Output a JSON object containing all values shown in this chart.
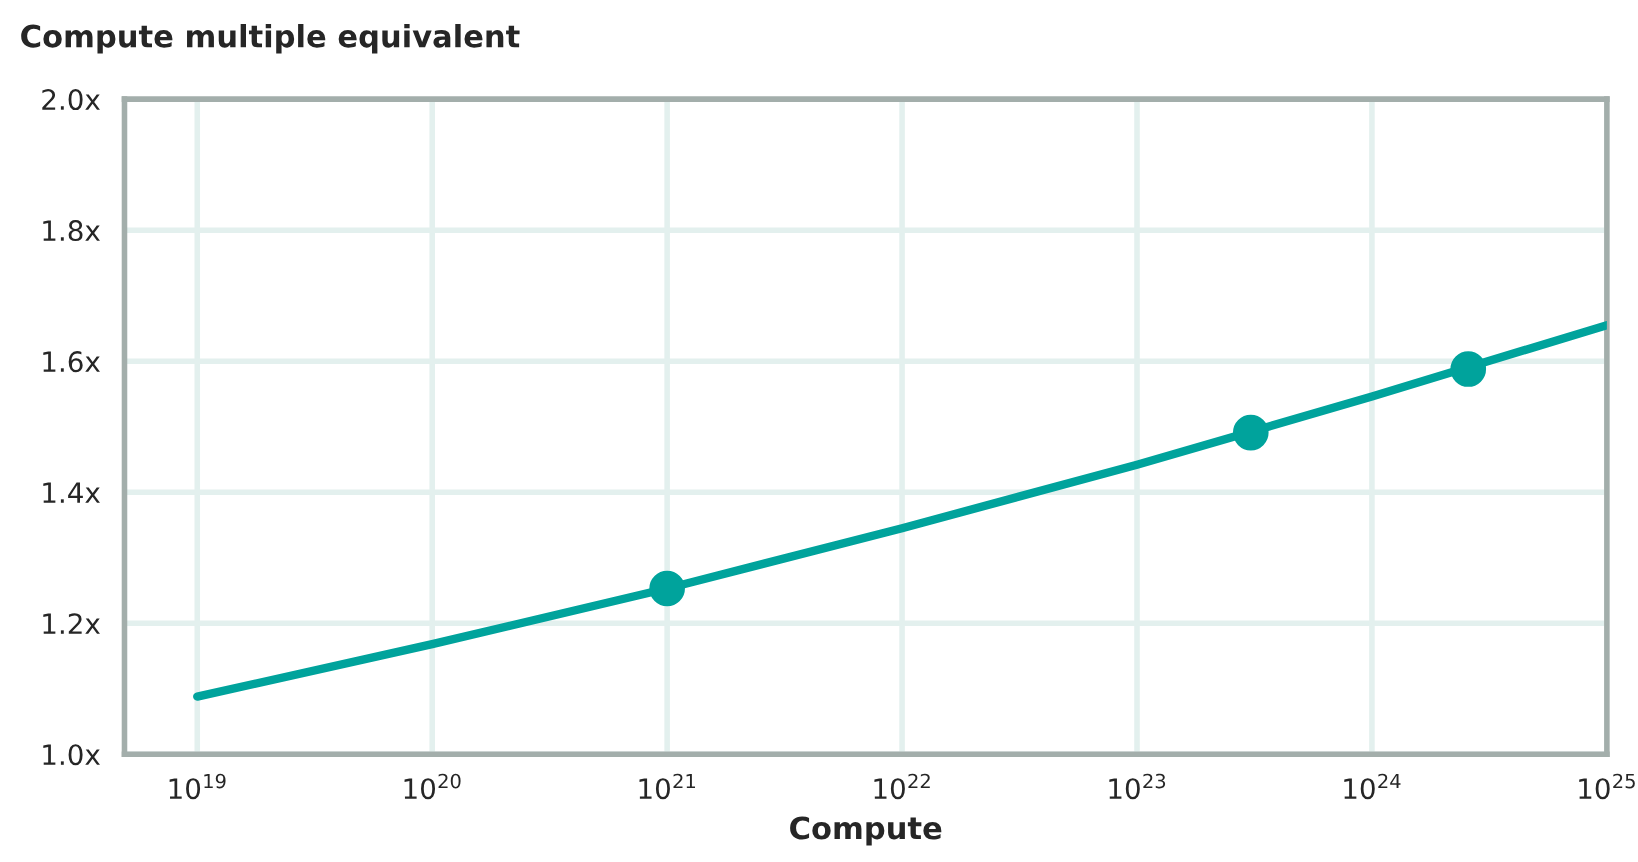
{
  "chart_data": {
    "type": "line",
    "ylabel": "Compute multiple equivalent",
    "xlabel": "Compute",
    "log": "x",
    "xlim": [
      4.9e+18,
      1e+25
    ],
    "xticks": [
      {
        "value": 1e+19,
        "label": "10$^{19}$"
      },
      {
        "value": 1e+20,
        "label": "10$^{20}$"
      },
      {
        "value": 1e+21,
        "label": "10$^{21}$"
      },
      {
        "value": 1e+22,
        "label": "10$^{22}$"
      },
      {
        "value": 1e+23,
        "label": "10$^{23}$"
      },
      {
        "value": 1e+24,
        "label": "10$^{24}$"
      },
      {
        "value": 1e+25,
        "label": "10$^{25}$"
      }
    ],
    "ylim": [
      1.0,
      2.0
    ],
    "yticks": [
      {
        "value": 1.0,
        "label": "1.0x"
      },
      {
        "value": 1.2,
        "label": "1.2x"
      },
      {
        "value": 1.4,
        "label": "1.4x"
      },
      {
        "value": 1.6,
        "label": "1.6x"
      },
      {
        "value": 1.8,
        "label": "1.8x"
      },
      {
        "value": 2.0,
        "label": "2.0x"
      }
    ],
    "grid": true,
    "legend": false,
    "series": [
      {
        "color": "#00a39c",
        "marker": "none",
        "line_style": "solid",
        "x": [
          1e+19,
          1e+20,
          1e+21,
          1e+22,
          1e+23,
          1e+24,
          1e+25
        ],
        "values": [
          1.088,
          1.168,
          1.253,
          1.345,
          1.442,
          1.546,
          1.655
        ]
      },
      {
        "type": "scatter",
        "color": "#00a39c",
        "marker": "circle",
        "x": [
          1e+21,
          3.05e+23,
          2.57e+24
        ],
        "values": [
          1.253,
          1.491,
          1.588
        ]
      }
    ]
  }
}
